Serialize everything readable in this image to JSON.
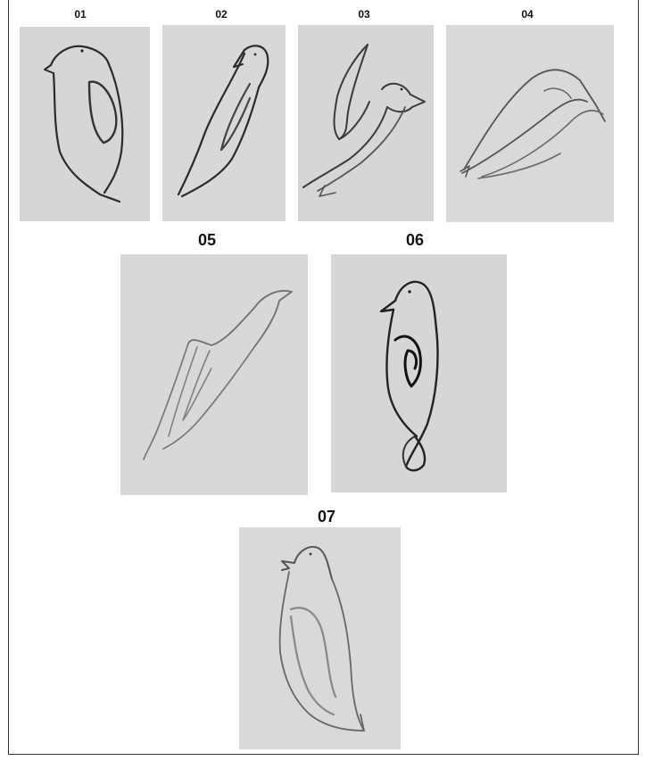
{
  "figure": {
    "panels": [
      {
        "label": "01",
        "subject": "bird-sketch"
      },
      {
        "label": "02",
        "subject": "bird-sketch"
      },
      {
        "label": "03",
        "subject": "bird-sketch"
      },
      {
        "label": "04",
        "subject": "bird-sketch"
      },
      {
        "label": "05",
        "subject": "bird-sketch"
      },
      {
        "label": "06",
        "subject": "bird-sketch"
      },
      {
        "label": "07",
        "subject": "bird-sketch"
      }
    ],
    "colors": {
      "paper_light": "#d9d9d9",
      "paper_mid": "#cfcfcf",
      "pencil_dark": "#2a2a2a",
      "pencil_mid": "#555555",
      "pencil_light": "#8a8a8a",
      "border": "#333333"
    }
  }
}
